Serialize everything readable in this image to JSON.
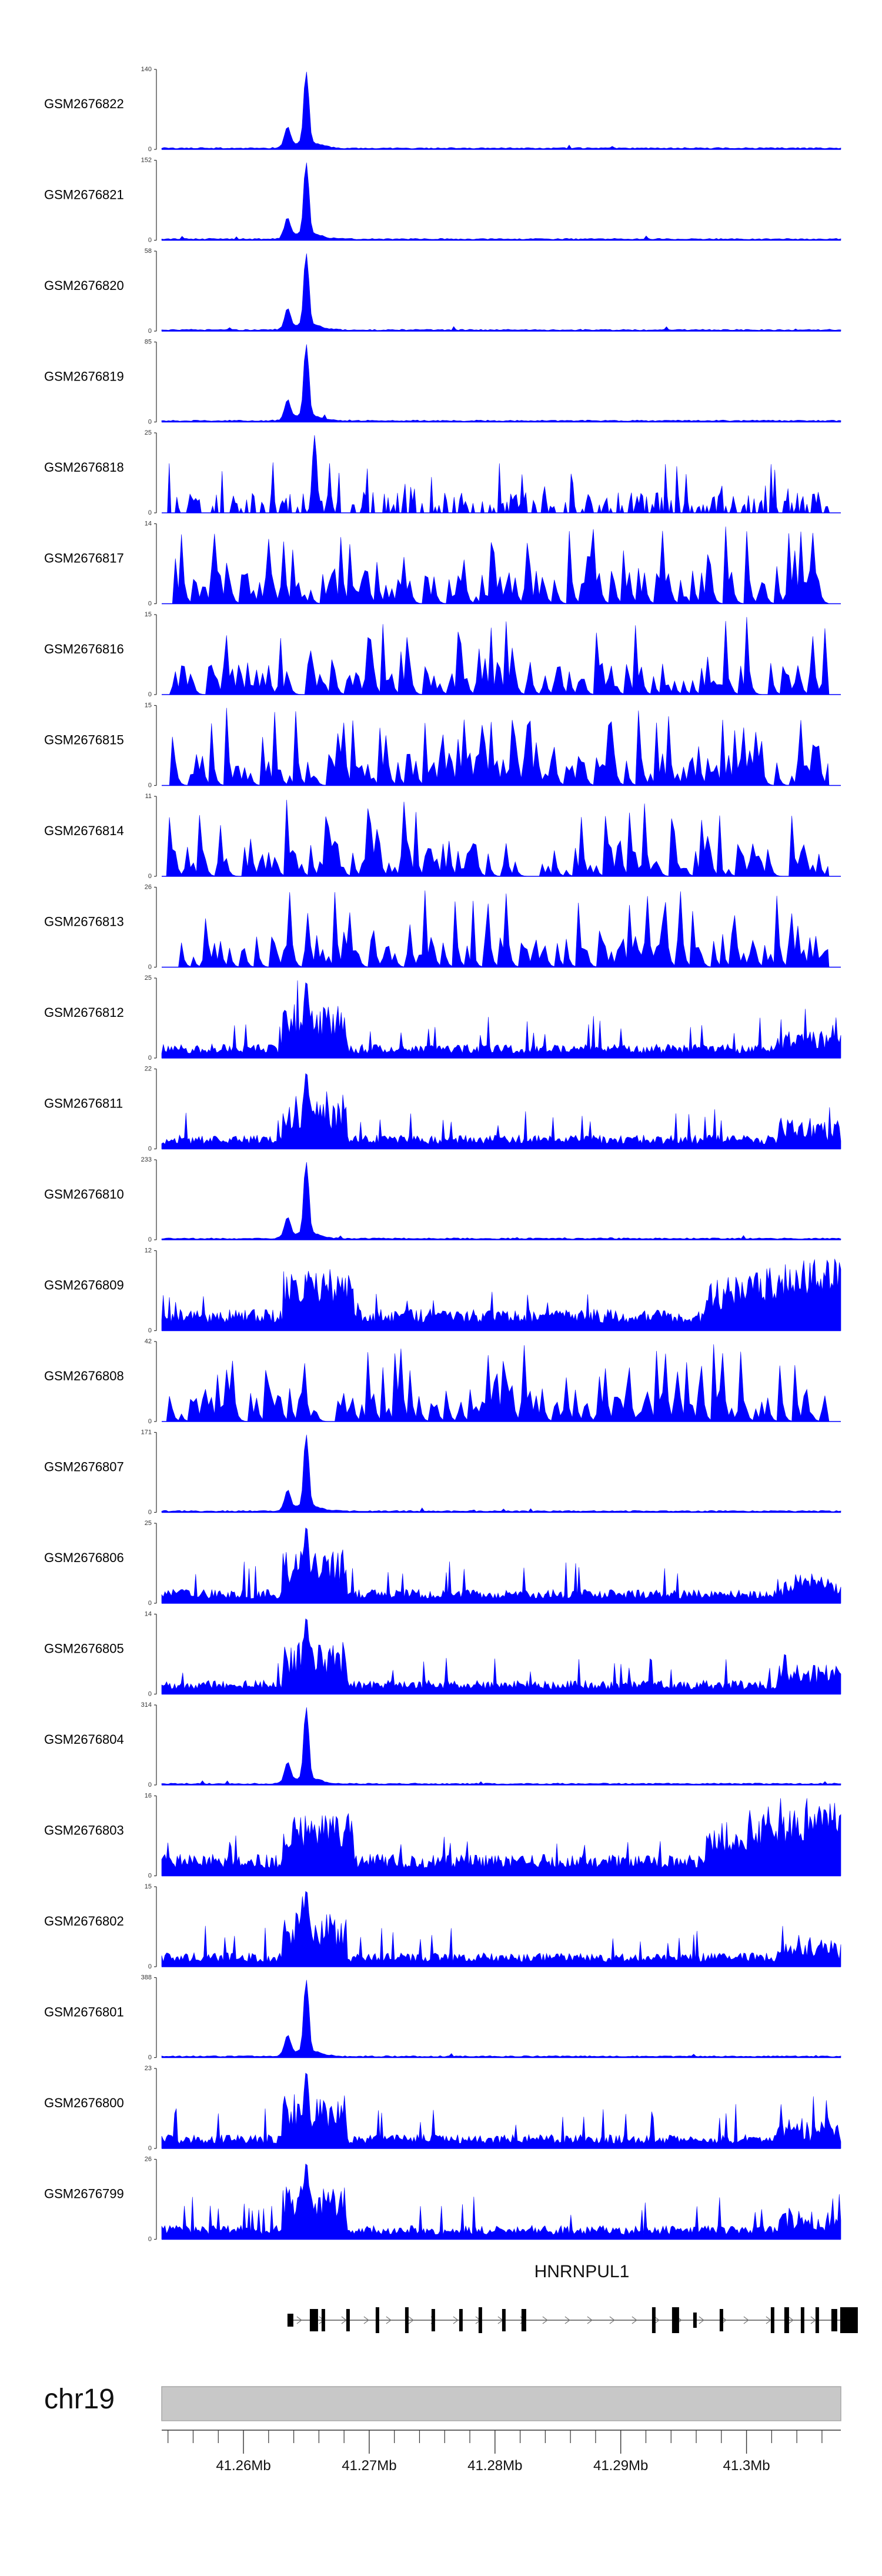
{
  "chart_data": {
    "type": "area",
    "genome": {
      "chromosome": "chr19",
      "x_range": [
        41253500,
        41307500
      ],
      "x_ticks": [
        {
          "pos": 41260000,
          "label": "41.26Mb"
        },
        {
          "pos": 41270000,
          "label": "41.27Mb"
        },
        {
          "pos": 41280000,
          "label": "41.28Mb"
        },
        {
          "pos": 41290000,
          "label": "41.29Mb"
        },
        {
          "pos": 41300000,
          "label": "41.3Mb"
        }
      ]
    },
    "tracks": [
      {
        "name": "GSM2676822",
        "ymax": "140",
        "pattern": "peak"
      },
      {
        "name": "GSM2676821",
        "ymax": "152",
        "pattern": "peak"
      },
      {
        "name": "GSM2676820",
        "ymax": "58",
        "pattern": "peak"
      },
      {
        "name": "GSM2676819",
        "ymax": "85",
        "pattern": "peak"
      },
      {
        "name": "GSM2676818",
        "ymax": "25",
        "pattern": "spiky"
      },
      {
        "name": "GSM2676817",
        "ymax": "14",
        "pattern": "sparse"
      },
      {
        "name": "GSM2676816",
        "ymax": "15",
        "pattern": "sparse"
      },
      {
        "name": "GSM2676815",
        "ymax": "15",
        "pattern": "sparse"
      },
      {
        "name": "GSM2676814",
        "ymax": "11",
        "pattern": "sparse"
      },
      {
        "name": "GSM2676813",
        "ymax": "26",
        "pattern": "sparse"
      },
      {
        "name": "GSM2676812",
        "ymax": "25",
        "pattern": "broad"
      },
      {
        "name": "GSM2676811",
        "ymax": "22",
        "pattern": "broad"
      },
      {
        "name": "GSM2676810",
        "ymax": "233",
        "pattern": "peak"
      },
      {
        "name": "GSM2676809",
        "ymax": "12",
        "pattern": "dense"
      },
      {
        "name": "GSM2676808",
        "ymax": "42",
        "pattern": "sparse"
      },
      {
        "name": "GSM2676807",
        "ymax": "171",
        "pattern": "peak"
      },
      {
        "name": "GSM2676806",
        "ymax": "25",
        "pattern": "broad"
      },
      {
        "name": "GSM2676805",
        "ymax": "14",
        "pattern": "broad"
      },
      {
        "name": "GSM2676804",
        "ymax": "314",
        "pattern": "peak"
      },
      {
        "name": "GSM2676803",
        "ymax": "16",
        "pattern": "dense"
      },
      {
        "name": "GSM2676802",
        "ymax": "15",
        "pattern": "broad"
      },
      {
        "name": "GSM2676801",
        "ymax": "388",
        "pattern": "peak"
      },
      {
        "name": "GSM2676800",
        "ymax": "23",
        "pattern": "broad"
      },
      {
        "name": "GSM2676799",
        "ymax": "26",
        "pattern": "broad"
      }
    ],
    "ymin_label": "0",
    "gene": {
      "name": "HNRNPUL1",
      "start": 41263500,
      "end": 41307500
    },
    "colors": {
      "signal": "#0000ff",
      "axis": "#333333",
      "exon": "#000000",
      "ideogram": "#c8c8c8"
    }
  }
}
